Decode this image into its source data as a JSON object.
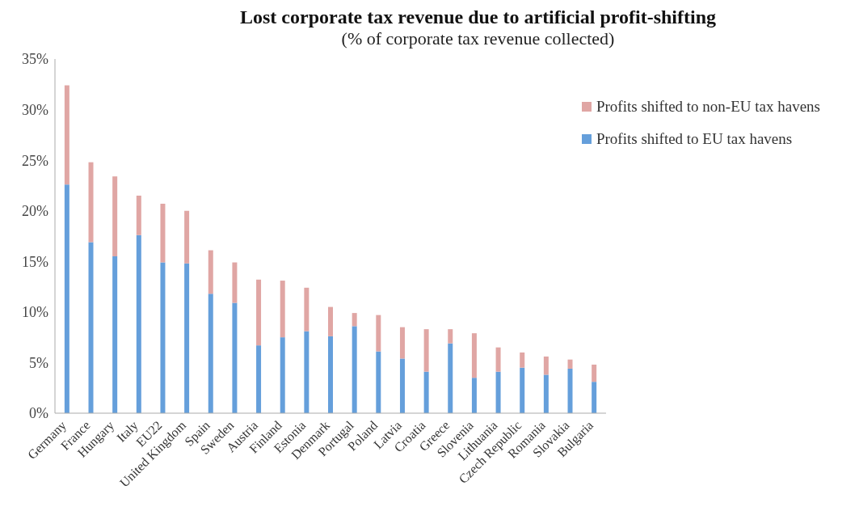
{
  "chart_data": {
    "type": "bar",
    "title": "Lost corporate tax revenue due to artificial profit-shifting",
    "subtitle": "(% of corporate tax revenue collected)",
    "categories": [
      "Germany",
      "France",
      "Hungary",
      "Italy",
      "EU22",
      "United Kingdom",
      "Spain",
      "Sweden",
      "Austria",
      "Finland",
      "Estonia",
      "Denmark",
      "Portugal",
      "Poland",
      "Latvia",
      "Croatia",
      "Greece",
      "Slovenia",
      "Lithuania",
      "Czech Republic",
      "Romania",
      "Slovakia",
      "Bulgaria"
    ],
    "stacked": true,
    "series": [
      {
        "name": "Profits shifted to EU tax havens",
        "color": "#659fdb",
        "values": [
          22.6,
          16.9,
          15.5,
          17.6,
          14.9,
          14.8,
          11.8,
          10.9,
          6.7,
          7.5,
          8.1,
          7.6,
          8.6,
          6.1,
          5.4,
          4.1,
          6.9,
          3.5,
          4.1,
          4.5,
          3.8,
          4.4,
          3.1
        ]
      },
      {
        "name": "Profits shifted to non-EU tax havens",
        "color": "#e0a6a4",
        "values": [
          9.8,
          7.9,
          7.9,
          3.9,
          5.8,
          5.2,
          4.3,
          4.0,
          6.5,
          5.6,
          4.3,
          2.9,
          1.3,
          3.6,
          3.1,
          4.2,
          1.4,
          4.4,
          2.4,
          1.5,
          1.8,
          0.9,
          1.7
        ]
      }
    ],
    "ylim": [
      0,
      35
    ],
    "yticks": [
      {
        "value": 0,
        "label": "0%"
      },
      {
        "value": 5,
        "label": "5%"
      },
      {
        "value": 10,
        "label": "10%"
      },
      {
        "value": 15,
        "label": "15%"
      },
      {
        "value": 20,
        "label": "20%"
      },
      {
        "value": 25,
        "label": "25%"
      },
      {
        "value": 30,
        "label": "30%"
      },
      {
        "value": 35,
        "label": "35%"
      }
    ],
    "grid": false,
    "legend": "top right"
  }
}
